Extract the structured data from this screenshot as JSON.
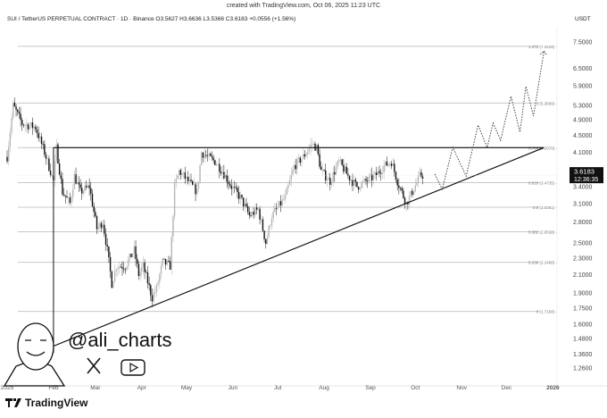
{
  "header": {
    "created": "created with TradingView.com, Oct 06, 2025 11:23 UTC",
    "symbol_line": "SUI / TetherUS PERPETUAL CONTRACT · 1D · Binance  O3.5627  H3.6636  L3.5366  C3.6183  +0.0556 (+1.56%)",
    "currency": "USDT"
  },
  "branding": {
    "handle": "@ali_charts",
    "logo": "TradingView",
    "icons": [
      "x-logo-icon",
      "youtube-icon"
    ]
  },
  "colors": {
    "up": "#b5b5b5",
    "down": "#111111",
    "fib": "#c8c8c8",
    "lines": "#111111",
    "projection": "#444444"
  },
  "chart_data": {
    "type": "candlestick",
    "scale": "log",
    "y_ticks": [
      "7.5000",
      "6.5000",
      "5.9000",
      "5.3000",
      "4.9000",
      "4.5000",
      "4.1000",
      "3.4000",
      "3.1000",
      "2.8000",
      "2.5000",
      "2.3000",
      "2.1000",
      "1.9000",
      "1.7500",
      "1.6000",
      "1.4800",
      "1.3600",
      "1.2600"
    ],
    "x_ticks": [
      "2025",
      "Feb",
      "Mar",
      "Apr",
      "May",
      "Jun",
      "Jul",
      "Aug",
      "Sep",
      "Oct",
      "Nov",
      "Dec",
      "2026"
    ],
    "last_price": {
      "price": "3.6183",
      "countdown": "12:36:35"
    },
    "fib_levels": [
      {
        "label": "1.272 (7.3229)",
        "value": 7.3229
      },
      {
        "label": "1 (5.3699)",
        "value": 5.3699
      },
      {
        "label": "0.786 (4.2070)",
        "value": 4.207
      },
      {
        "label": "0.618 (3.4735)",
        "value": 3.4735
      },
      {
        "label": "0.5 (3.0361)",
        "value": 3.0361
      },
      {
        "label": "0.382 (2.6538)",
        "value": 2.6538
      },
      {
        "label": "0.236 (2.2468)",
        "value": 2.2468
      },
      {
        "label": "0 (1.7168)",
        "value": 1.7168
      }
    ],
    "price_path": [
      [
        "2025-01-01",
        4.0
      ],
      [
        "2025-01-05",
        5.3
      ],
      [
        "2025-01-11",
        4.8
      ],
      [
        "2025-01-20",
        4.7
      ],
      [
        "2025-01-26",
        4.1
      ],
      [
        "2025-02-01",
        3.5
      ],
      [
        "2025-02-03",
        4.2
      ],
      [
        "2025-02-07",
        3.3
      ],
      [
        "2025-02-12",
        3.1
      ],
      [
        "2025-02-15",
        3.6
      ],
      [
        "2025-02-19",
        3.3
      ],
      [
        "2025-02-25",
        3.4
      ],
      [
        "2025-03-02",
        2.7
      ],
      [
        "2025-03-06",
        2.8
      ],
      [
        "2025-03-09",
        2.4
      ],
      [
        "2025-03-12",
        2.0
      ],
      [
        "2025-03-15",
        2.2
      ],
      [
        "2025-03-21",
        2.2
      ],
      [
        "2025-03-27",
        2.4
      ],
      [
        "2025-03-30",
        2.1
      ],
      [
        "2025-04-02",
        2.2
      ],
      [
        "2025-04-08",
        1.85
      ],
      [
        "2025-04-11",
        1.95
      ],
      [
        "2025-04-15",
        2.25
      ],
      [
        "2025-04-20",
        2.2
      ],
      [
        "2025-04-23",
        3.4
      ],
      [
        "2025-04-26",
        3.7
      ],
      [
        "2025-05-02",
        3.5
      ],
      [
        "2025-05-08",
        3.3
      ],
      [
        "2025-05-11",
        4.1
      ],
      [
        "2025-05-15",
        4.0
      ],
      [
        "2025-05-20",
        3.9
      ],
      [
        "2025-05-25",
        3.7
      ],
      [
        "2025-05-31",
        3.4
      ],
      [
        "2025-06-06",
        3.2
      ],
      [
        "2025-06-12",
        2.9
      ],
      [
        "2025-06-18",
        3.0
      ],
      [
        "2025-06-23",
        2.5
      ],
      [
        "2025-06-27",
        2.9
      ],
      [
        "2025-07-06",
        3.2
      ],
      [
        "2025-07-12",
        3.8
      ],
      [
        "2025-07-18",
        4.0
      ],
      [
        "2025-07-24",
        4.3
      ],
      [
        "2025-07-27",
        4.2
      ],
      [
        "2025-07-30",
        3.7
      ],
      [
        "2025-08-05",
        3.5
      ],
      [
        "2025-08-11",
        3.9
      ],
      [
        "2025-08-17",
        3.6
      ],
      [
        "2025-08-23",
        3.4
      ],
      [
        "2025-08-29",
        3.5
      ],
      [
        "2025-09-04",
        3.6
      ],
      [
        "2025-09-10",
        3.8
      ],
      [
        "2025-09-15",
        3.9
      ],
      [
        "2025-09-19",
        3.5
      ],
      [
        "2025-09-25",
        3.1
      ],
      [
        "2025-09-28",
        3.25
      ],
      [
        "2025-10-04",
        3.6
      ],
      [
        "2025-10-06",
        3.62
      ]
    ],
    "resistance": {
      "from": "2025-02-01",
      "to": "2025-12-26",
      "value": 4.207
    },
    "support_trendline": {
      "from": [
        "2025-02-01",
        1.42
      ],
      "to": [
        "2025-12-26",
        4.207
      ]
    },
    "projection": [
      [
        "2025-10-14",
        3.64
      ],
      [
        "2025-10-19",
        3.35
      ],
      [
        "2025-10-26",
        4.21
      ],
      [
        "2025-11-04",
        3.6
      ],
      [
        "2025-11-12",
        4.76
      ],
      [
        "2025-11-18",
        4.21
      ],
      [
        "2025-11-22",
        4.81
      ],
      [
        "2025-11-27",
        4.38
      ],
      [
        "2025-12-04",
        5.57
      ],
      [
        "2025-12-10",
        4.58
      ],
      [
        "2025-12-14",
        5.88
      ],
      [
        "2025-12-19",
        5.0
      ],
      [
        "2025-12-26",
        7.11
      ]
    ]
  }
}
